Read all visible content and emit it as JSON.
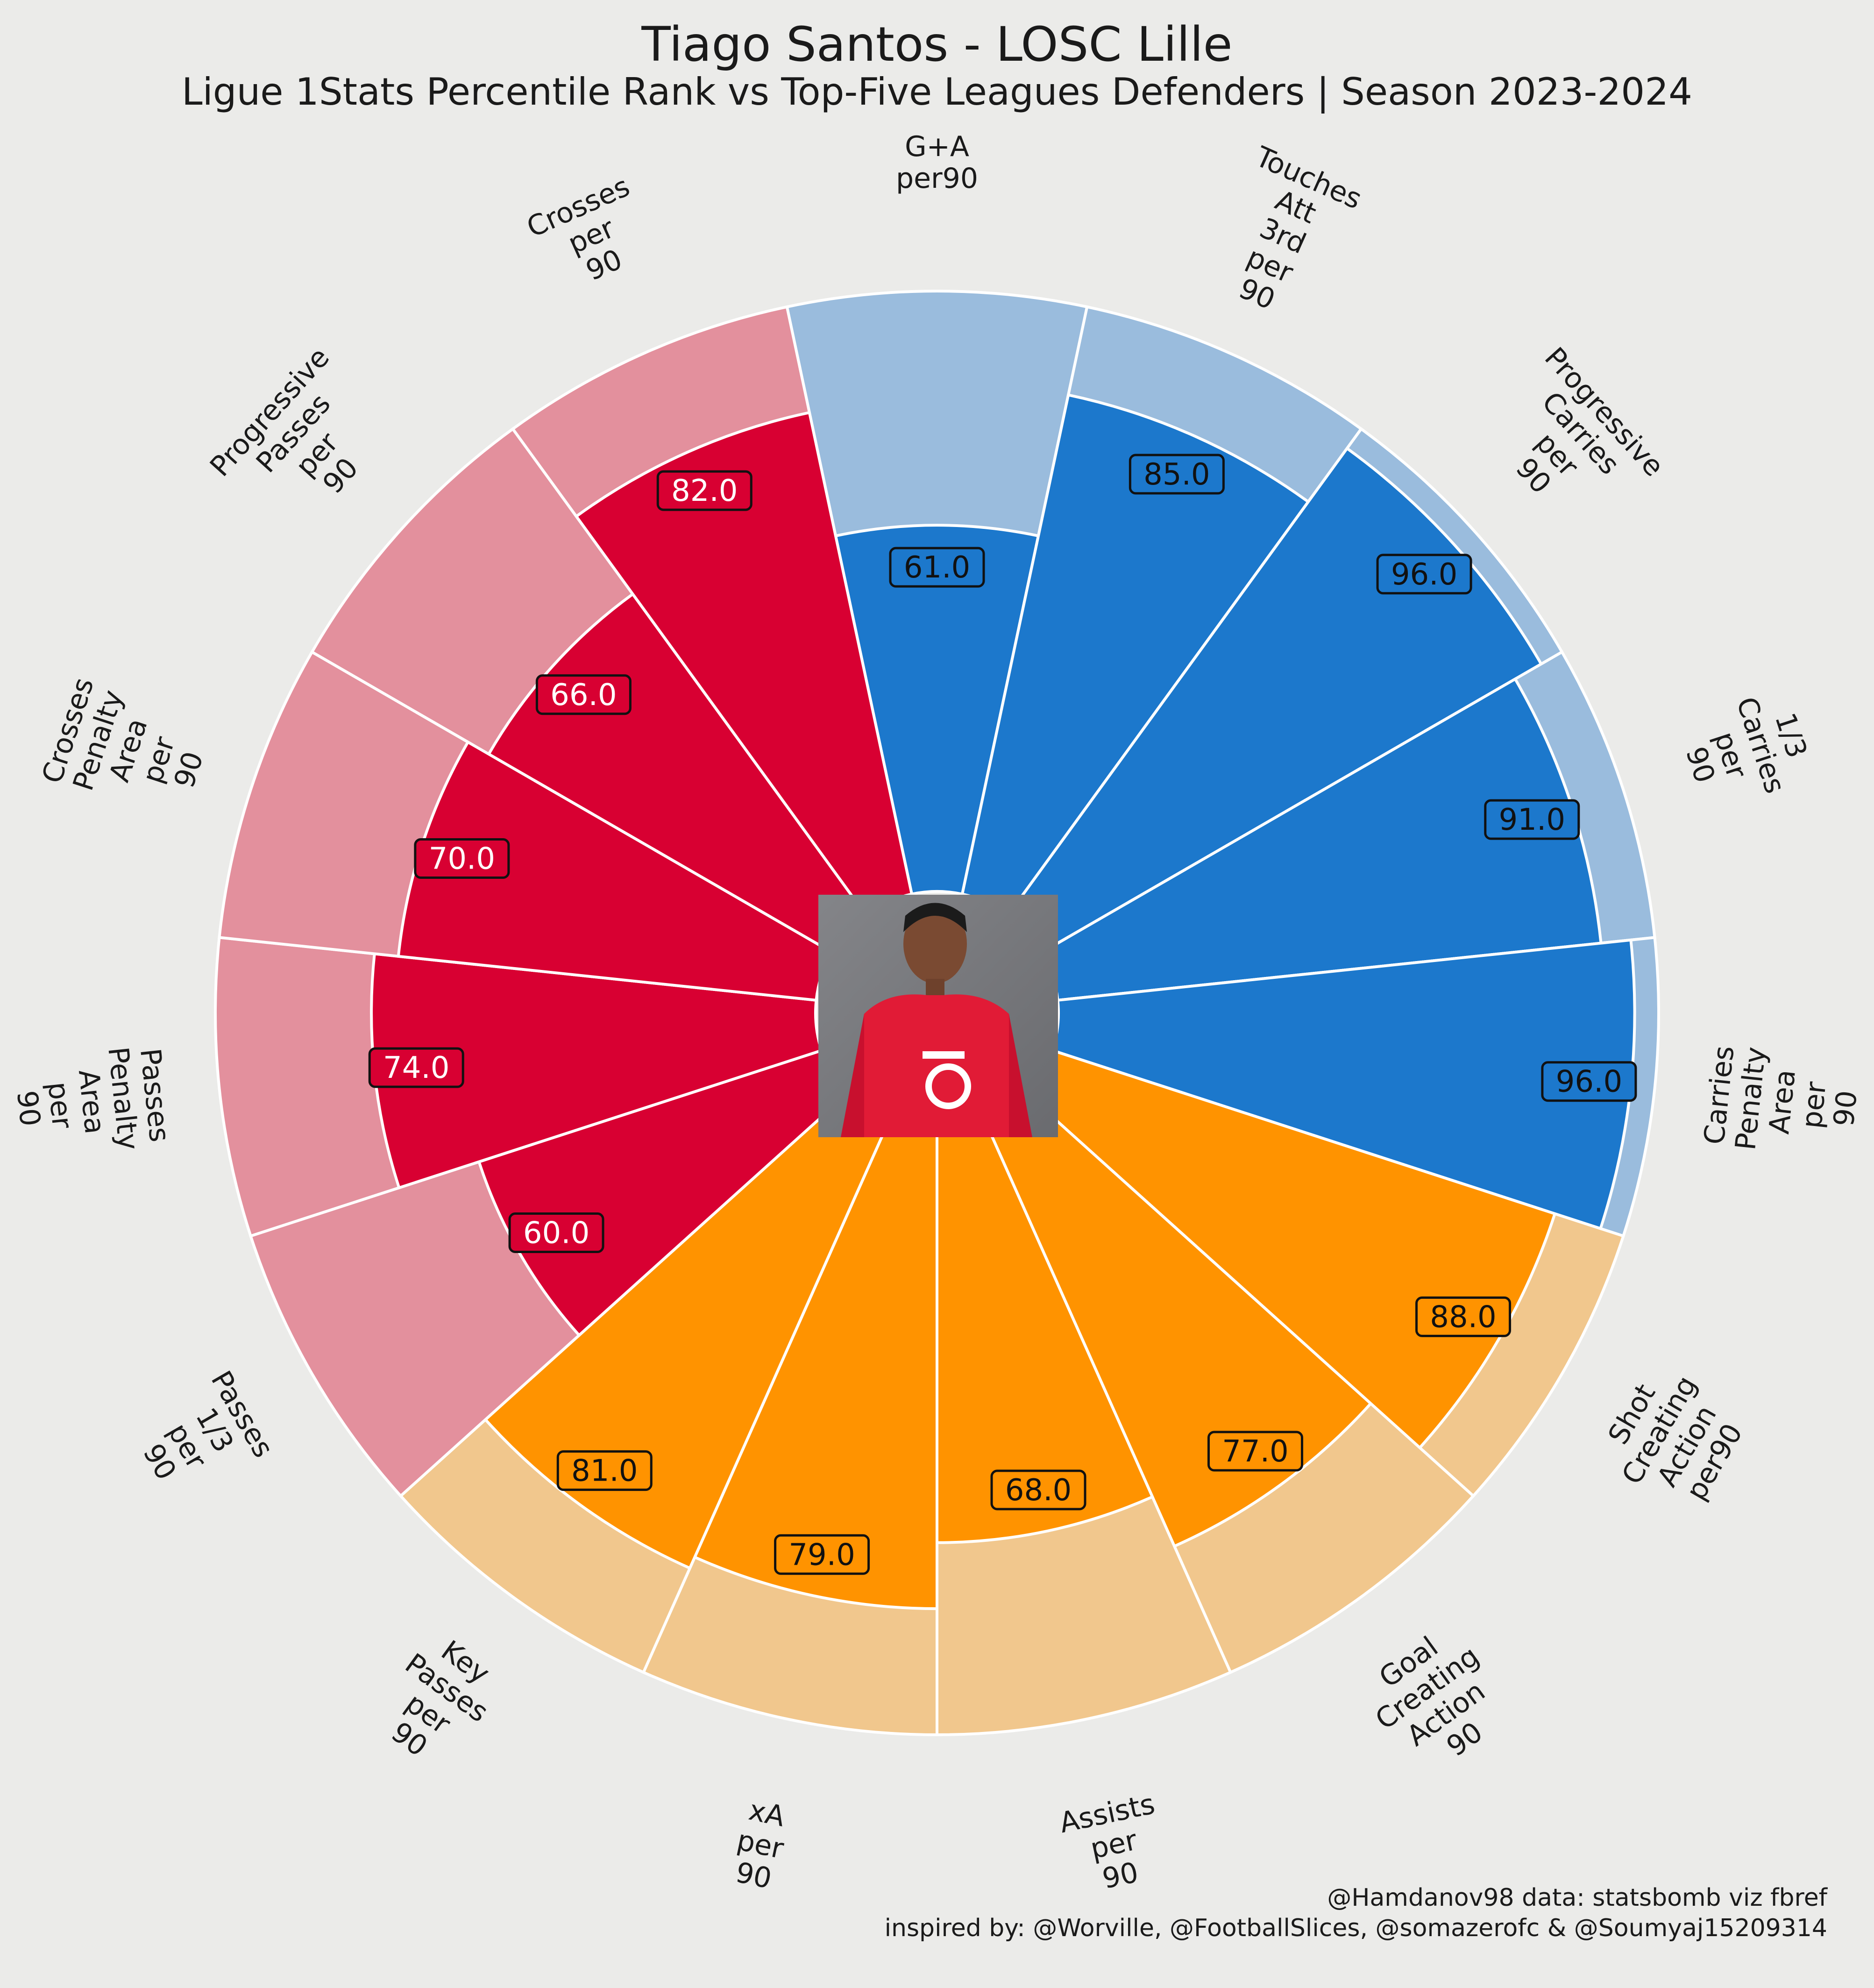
{
  "header": {
    "title": "Tiago Santos - LOSC Lille",
    "subtitle": "Ligue 1Stats Percentile Rank vs Top-Five Leagues Defenders | Season 2023-2024"
  },
  "footer": {
    "line1": "@Hamdanov98 data: statsbomb viz fbref",
    "line2": "inspired by: @Worville, @FootballSlices, @somazerofc & @Soumyaj15209314"
  },
  "colors": {
    "background": "#ebebe9",
    "attacking": "#1c78cc",
    "attacking_light": "#9abcdd",
    "creation": "#ff9300",
    "creation_light": "#f1c78d",
    "passing": "#d80032",
    "passing_light": "#e3909d",
    "separator": "#ffffff"
  },
  "chart_data": {
    "type": "radial-bar",
    "scale_max": 100,
    "center_image": "player-photo",
    "segments": [
      {
        "label": "G+A\nper90",
        "value": 61.0,
        "group": "attacking"
      },
      {
        "label": "Touches\nAtt\n3rd\nper\n90",
        "value": 85.0,
        "group": "attacking"
      },
      {
        "label": "Progressive\nCarries\nper\n90",
        "value": 96.0,
        "group": "attacking"
      },
      {
        "label": "1/3\nCarries\nper\n90",
        "value": 91.0,
        "group": "attacking"
      },
      {
        "label": "Carries\nPenalty\nArea\nper\n90",
        "value": 96.0,
        "group": "attacking"
      },
      {
        "label": "Shot\nCreating\nAction\nper90",
        "value": 88.0,
        "group": "creation"
      },
      {
        "label": "Goal\nCreating\nAction\n90",
        "value": 77.0,
        "group": "creation"
      },
      {
        "label": "Assists\nper\n90",
        "value": 68.0,
        "group": "creation"
      },
      {
        "label": "xA\nper\n90",
        "value": 79.0,
        "group": "creation"
      },
      {
        "label": "Key\nPasses\nper\n90",
        "value": 81.0,
        "group": "creation"
      },
      {
        "label": "Passes\n1/3\nper\n90",
        "value": 60.0,
        "group": "passing"
      },
      {
        "label": "Passes\nPenalty\nArea\nper\n90",
        "value": 74.0,
        "group": "passing"
      },
      {
        "label": "Crosses\nPenalty\nArea\nper\n90",
        "value": 70.0,
        "group": "passing"
      },
      {
        "label": "Progressive\nPasses\nper\n90",
        "value": 66.0,
        "group": "passing"
      },
      {
        "label": "Crosses\nper\n90",
        "value": 82.0,
        "group": "passing"
      }
    ]
  }
}
